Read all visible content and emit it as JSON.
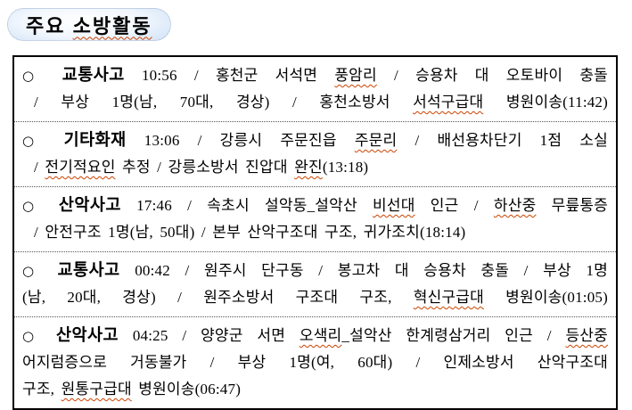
{
  "colors": {
    "badge_edge_blue": "#8cb4e8",
    "badge_center": "#ffffff",
    "badge_dotted_border": "#9fb3cf",
    "board_border": "#000000",
    "row_divider": "#555555",
    "misspell_underline": "#cc4300",
    "text": "#000000"
  },
  "title": {
    "segments": [
      {
        "text": "주요 "
      },
      {
        "text": "소방활동",
        "squiggle": true
      }
    ]
  },
  "board": {
    "rows": [
      {
        "lines": [
          {
            "full": true,
            "segments": [
              {
                "text": "○ ",
                "bullet": true
              },
              {
                "text": "교통사고",
                "bold": true
              },
              {
                "text": " 10:56 / 홍천군 서석면 "
              },
              {
                "text": "풍암리",
                "squiggle": true
              },
              {
                "text": " / 승용차 대 오토바이 충돌"
              }
            ]
          },
          {
            "full": true,
            "indent": true,
            "segments": [
              {
                "text": "/ 부상 1명(남, 70대, 경상) / 홍천소방서 "
              },
              {
                "text": "서석구급대",
                "squiggle": true
              },
              {
                "text": " 병원이송(11:42)"
              }
            ]
          }
        ]
      },
      {
        "lines": [
          {
            "full": true,
            "segments": [
              {
                "text": "○ ",
                "bullet": true
              },
              {
                "text": "기타화재",
                "bold": true
              },
              {
                "text": " 13:06 / 강릉시 주문진읍 "
              },
              {
                "text": "주문리",
                "squiggle": true
              },
              {
                "text": " / 배선용차단기 1점 소실"
              }
            ]
          },
          {
            "indent": true,
            "segments": [
              {
                "text": "/ "
              },
              {
                "text": "전기적요인",
                "squiggle": true
              },
              {
                "text": " 추정 / 강릉소방서 진압대 "
              },
              {
                "text": "완진",
                "squiggle": true
              },
              {
                "text": "(13:18)"
              }
            ]
          }
        ]
      },
      {
        "lines": [
          {
            "full": true,
            "segments": [
              {
                "text": "○ ",
                "bullet": true
              },
              {
                "text": "산악사고",
                "bold": true
              },
              {
                "text": " 17:46 / 속초시 설악동_설악산 "
              },
              {
                "text": "비선대",
                "squiggle": true
              },
              {
                "text": " 인근 / "
              },
              {
                "text": "하산중",
                "squiggle": true
              },
              {
                "text": " 무릎통증"
              }
            ]
          },
          {
            "indent": true,
            "segments": [
              {
                "text": "/ 안전구조 1명(남, 50대) / 본부 산악구조대 구조, 귀가조치(18:14)"
              }
            ]
          }
        ]
      },
      {
        "lines": [
          {
            "full": true,
            "segments": [
              {
                "text": "○ ",
                "bullet": true
              },
              {
                "text": "교통사고",
                "bold": true
              },
              {
                "text": " 00:42 / 원주시 단구동 / 봉고차 대 승용차 충돌 / 부상 1명"
              }
            ]
          },
          {
            "full": true,
            "segments": [
              {
                "text": "(남, 20대, 경상) / 원주소방서 구조대 구조, "
              },
              {
                "text": "혁신구급대",
                "squiggle": true
              },
              {
                "text": " 병원이송(01:05)"
              }
            ]
          }
        ]
      },
      {
        "lines": [
          {
            "full": true,
            "segments": [
              {
                "text": "○ ",
                "bullet": true
              },
              {
                "text": "산악사고",
                "bold": true
              },
              {
                "text": " 04:25 / 양양군 서면 "
              },
              {
                "text": "오색리",
                "squiggle": true
              },
              {
                "text": "_설악산 한계령삼거리 인근 / "
              },
              {
                "text": "등산중",
                "squiggle": true
              }
            ]
          },
          {
            "full": true,
            "segments": [
              {
                "text": "어지럼증으로 거동불가 / 부상 1명(여, 60대) / 인제소방서 산악구조대"
              }
            ]
          },
          {
            "segments": [
              {
                "text": "구조, "
              },
              {
                "text": "원통구급대",
                "squiggle": true
              },
              {
                "text": " 병원이송(06:47)"
              }
            ]
          }
        ]
      }
    ]
  }
}
